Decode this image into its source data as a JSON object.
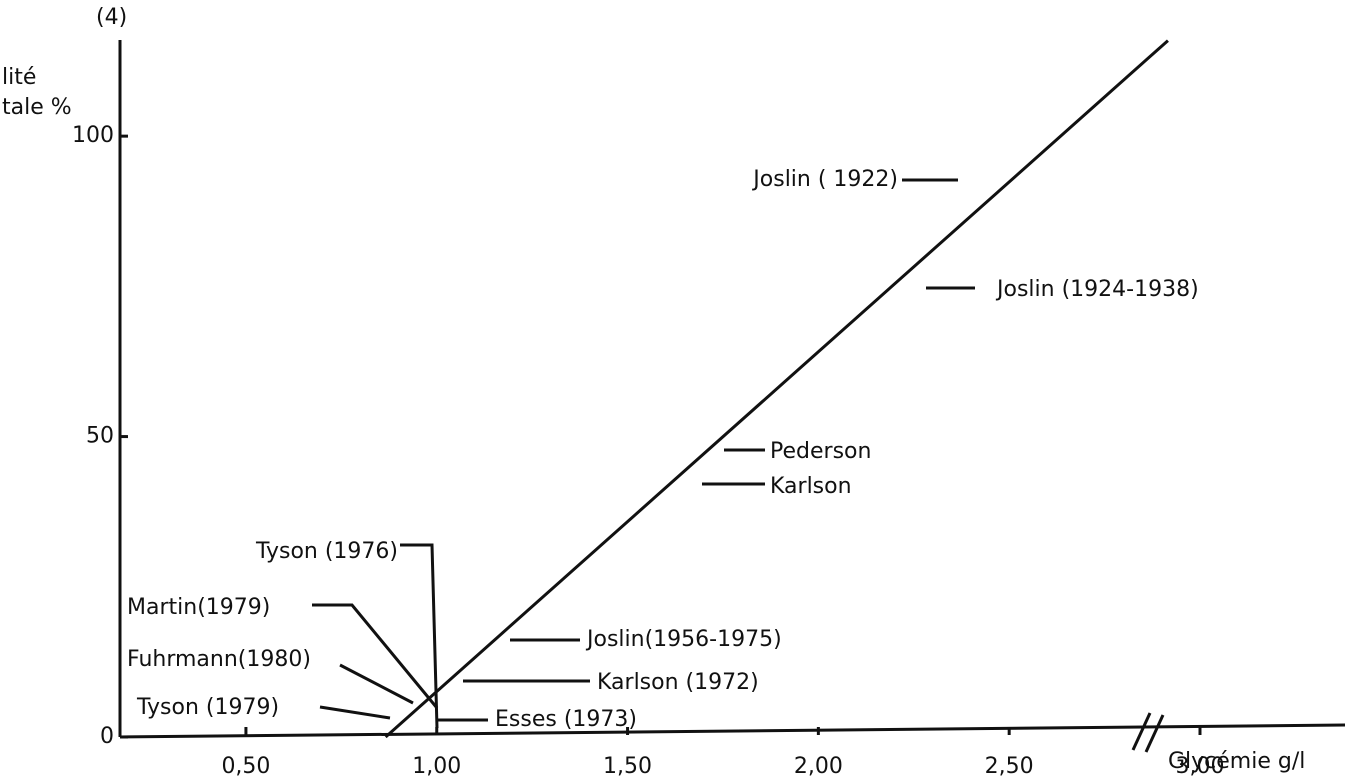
{
  "chart_data": {
    "type": "line",
    "title_note": "(4)",
    "ylabel_lines": [
      "lité",
      "tale %"
    ],
    "xlabel": "Glycémie g/l",
    "series": [
      {
        "color": "#111111",
        "x": [
          0.866,
          2.916
        ],
        "values": [
          0,
          115.9
        ]
      }
    ],
    "xlim": [
      0.17,
      3.38
    ],
    "ylim": [
      0,
      116
    ],
    "xticks": [
      {
        "value": 0.5,
        "label": "0,50"
      },
      {
        "value": 1.0,
        "label": "1,00"
      },
      {
        "value": 1.5,
        "label": "1,50"
      },
      {
        "value": 2.0,
        "label": "2,00"
      },
      {
        "value": 2.5,
        "label": "2,50"
      },
      {
        "value": 3.0,
        "label": "3,00"
      }
    ],
    "yticks": [
      0,
      50,
      100
    ],
    "axis_break": true,
    "annotations": [
      "Joslin ( 1922)",
      "Joslin (1924-1938)",
      "Pederson",
      "Karlson",
      "Tyson (1976)",
      "Martin(1979)",
      "Joslin(1956-1975)",
      "Fuhrmann(1980)",
      "Karlson (1972)",
      "Tyson (1979)",
      "Esses (1973)"
    ]
  }
}
